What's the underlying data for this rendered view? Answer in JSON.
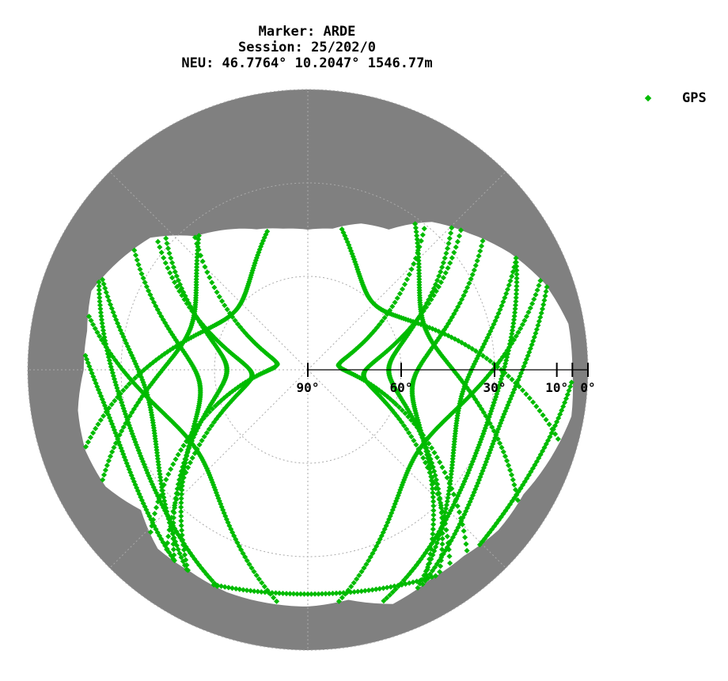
{
  "header": {
    "line1": "Marker: ARDE",
    "line2": "Session: 25/202/0",
    "line3": "NEU: 46.7764° 10.2047° 1546.77m"
  },
  "colors": {
    "mask": "#808080",
    "gps": "#00bb00",
    "grid": "#aaaaaa",
    "axis": "#000000"
  },
  "chart_data": {
    "type": "scatter",
    "projection": "polar-skyplot",
    "title": "Marker: ARDE / Session: 25/202/0 / NEU: 46.7764° 10.2047° 1546.77m",
    "legend": {
      "position": "top-right",
      "entries": [
        "GPS"
      ]
    },
    "elevation_ticks": [
      {
        "value": 90,
        "label": "90°"
      },
      {
        "value": 60,
        "label": "60°"
      },
      {
        "value": 30,
        "label": "30°"
      },
      {
        "value": 10,
        "label": "10°"
      },
      {
        "value": 5,
        "label": ""
      },
      {
        "value": 0,
        "label": "0°"
      }
    ],
    "elevation_range": [
      0,
      90
    ],
    "grid_circles_elevation": [
      0,
      30,
      60
    ],
    "grid_radials_azimuth": [
      0,
      45,
      90,
      135,
      180,
      225,
      270,
      315
    ],
    "horizon_mask": {
      "azimuth": [
        0,
        10,
        20,
        30,
        40,
        50,
        60,
        70,
        80,
        90,
        100,
        110,
        120,
        130,
        140,
        150,
        160,
        170,
        180,
        190,
        200,
        210,
        220,
        230,
        240,
        250,
        260,
        270,
        280,
        290,
        300,
        310,
        320,
        330,
        340,
        350
      ],
      "elevation": [
        45,
        44,
        40,
        38,
        28,
        22,
        15,
        9,
        5,
        5,
        4,
        7,
        10,
        10,
        12,
        12,
        10,
        15,
        14,
        14,
        14,
        15,
        15,
        20,
        15,
        14,
        15,
        18,
        18,
        16,
        20,
        24,
        34,
        38,
        42,
        44
      ]
    },
    "series": [
      {
        "name": "GPS",
        "tracks": [
          {
            "az_start": 210,
            "az_end": 325,
            "el_max": 72,
            "az_peak": 265
          },
          {
            "az_start": 200,
            "az_end": 320,
            "el_max": 55,
            "az_peak": 262
          },
          {
            "az_start": 195,
            "az_end": 310,
            "el_max": 38,
            "az_peak": 258
          },
          {
            "az_start": 190,
            "az_end": 300,
            "el_max": 25,
            "az_peak": 250
          },
          {
            "az_start": 205,
            "az_end": 330,
            "el_max": 64,
            "az_peak": 270
          },
          {
            "az_start": 215,
            "az_end": 335,
            "el_max": 80,
            "az_peak": 280
          },
          {
            "az_start": 150,
            "az_end": 35,
            "el_max": 72,
            "az_peak": 95
          },
          {
            "az_start": 160,
            "az_end": 40,
            "el_max": 56,
            "az_peak": 98
          },
          {
            "az_start": 165,
            "az_end": 50,
            "el_max": 40,
            "az_peak": 102
          },
          {
            "az_start": 170,
            "az_end": 60,
            "el_max": 26,
            "az_peak": 110
          },
          {
            "az_start": 155,
            "az_end": 30,
            "el_max": 64,
            "az_peak": 90
          },
          {
            "az_start": 145,
            "az_end": 25,
            "el_max": 80,
            "az_peak": 82
          },
          {
            "az_start": 175,
            "az_end": 300,
            "el_max": 46,
            "az_peak": 235
          },
          {
            "az_start": 185,
            "az_end": 60,
            "el_max": 46,
            "az_peak": 125
          },
          {
            "az_start": 180,
            "az_end": 320,
            "el_max": 30,
            "az_peak": 250
          },
          {
            "az_start": 180,
            "az_end": 40,
            "el_max": 30,
            "az_peak": 110
          },
          {
            "az_start": 120,
            "az_end": 240,
            "el_max": 18,
            "az_peak": 180
          },
          {
            "az_start": 130,
            "az_end": 230,
            "el_max": 10,
            "az_peak": 180
          },
          {
            "az_start": 240,
            "az_end": 20,
            "el_max": 60,
            "az_peak": 310
          },
          {
            "az_start": 340,
            "az_end": 110,
            "el_max": 60,
            "az_peak": 45
          },
          {
            "az_start": 230,
            "az_end": 350,
            "el_max": 50,
            "az_peak": 290
          },
          {
            "az_start": 10,
            "az_end": 130,
            "el_max": 50,
            "az_peak": 70
          },
          {
            "az_start": 190,
            "az_end": 280,
            "el_max": 12,
            "az_peak": 235
          },
          {
            "az_start": 80,
            "az_end": 170,
            "el_max": 12,
            "az_peak": 125
          }
        ]
      }
    ]
  },
  "legend": {
    "label": "GPS"
  }
}
